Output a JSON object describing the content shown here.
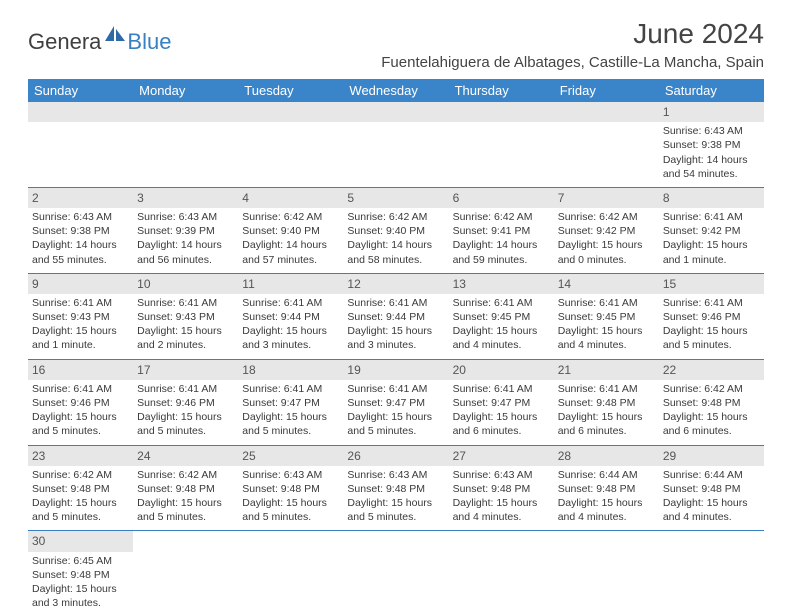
{
  "brand": {
    "word1": "Genera",
    "word2": "Blue"
  },
  "title": "June 2024",
  "location": "Fuentelahiguera de Albatages, Castille-La Mancha, Spain",
  "colors": {
    "header_bg": "#3a85c9",
    "header_text": "#ffffff",
    "row_divider": "#3a7fc2",
    "daynum_bg": "#e7e7e7",
    "body_text": "#3a3a3a",
    "logo_dark": "#3f3f3f",
    "logo_blue": "#3a7fc2",
    "page_bg": "#ffffff"
  },
  "weekdays": [
    "Sunday",
    "Monday",
    "Tuesday",
    "Wednesday",
    "Thursday",
    "Friday",
    "Saturday"
  ],
  "weeks": [
    [
      null,
      null,
      null,
      null,
      null,
      null,
      {
        "n": "1",
        "sunrise": "Sunrise: 6:43 AM",
        "sunset": "Sunset: 9:38 PM",
        "day1": "Daylight: 14 hours",
        "day2": "and 54 minutes."
      }
    ],
    [
      {
        "n": "2",
        "sunrise": "Sunrise: 6:43 AM",
        "sunset": "Sunset: 9:38 PM",
        "day1": "Daylight: 14 hours",
        "day2": "and 55 minutes."
      },
      {
        "n": "3",
        "sunrise": "Sunrise: 6:43 AM",
        "sunset": "Sunset: 9:39 PM",
        "day1": "Daylight: 14 hours",
        "day2": "and 56 minutes."
      },
      {
        "n": "4",
        "sunrise": "Sunrise: 6:42 AM",
        "sunset": "Sunset: 9:40 PM",
        "day1": "Daylight: 14 hours",
        "day2": "and 57 minutes."
      },
      {
        "n": "5",
        "sunrise": "Sunrise: 6:42 AM",
        "sunset": "Sunset: 9:40 PM",
        "day1": "Daylight: 14 hours",
        "day2": "and 58 minutes."
      },
      {
        "n": "6",
        "sunrise": "Sunrise: 6:42 AM",
        "sunset": "Sunset: 9:41 PM",
        "day1": "Daylight: 14 hours",
        "day2": "and 59 minutes."
      },
      {
        "n": "7",
        "sunrise": "Sunrise: 6:42 AM",
        "sunset": "Sunset: 9:42 PM",
        "day1": "Daylight: 15 hours",
        "day2": "and 0 minutes."
      },
      {
        "n": "8",
        "sunrise": "Sunrise: 6:41 AM",
        "sunset": "Sunset: 9:42 PM",
        "day1": "Daylight: 15 hours",
        "day2": "and 1 minute."
      }
    ],
    [
      {
        "n": "9",
        "sunrise": "Sunrise: 6:41 AM",
        "sunset": "Sunset: 9:43 PM",
        "day1": "Daylight: 15 hours",
        "day2": "and 1 minute."
      },
      {
        "n": "10",
        "sunrise": "Sunrise: 6:41 AM",
        "sunset": "Sunset: 9:43 PM",
        "day1": "Daylight: 15 hours",
        "day2": "and 2 minutes."
      },
      {
        "n": "11",
        "sunrise": "Sunrise: 6:41 AM",
        "sunset": "Sunset: 9:44 PM",
        "day1": "Daylight: 15 hours",
        "day2": "and 3 minutes."
      },
      {
        "n": "12",
        "sunrise": "Sunrise: 6:41 AM",
        "sunset": "Sunset: 9:44 PM",
        "day1": "Daylight: 15 hours",
        "day2": "and 3 minutes."
      },
      {
        "n": "13",
        "sunrise": "Sunrise: 6:41 AM",
        "sunset": "Sunset: 9:45 PM",
        "day1": "Daylight: 15 hours",
        "day2": "and 4 minutes."
      },
      {
        "n": "14",
        "sunrise": "Sunrise: 6:41 AM",
        "sunset": "Sunset: 9:45 PM",
        "day1": "Daylight: 15 hours",
        "day2": "and 4 minutes."
      },
      {
        "n": "15",
        "sunrise": "Sunrise: 6:41 AM",
        "sunset": "Sunset: 9:46 PM",
        "day1": "Daylight: 15 hours",
        "day2": "and 5 minutes."
      }
    ],
    [
      {
        "n": "16",
        "sunrise": "Sunrise: 6:41 AM",
        "sunset": "Sunset: 9:46 PM",
        "day1": "Daylight: 15 hours",
        "day2": "and 5 minutes."
      },
      {
        "n": "17",
        "sunrise": "Sunrise: 6:41 AM",
        "sunset": "Sunset: 9:46 PM",
        "day1": "Daylight: 15 hours",
        "day2": "and 5 minutes."
      },
      {
        "n": "18",
        "sunrise": "Sunrise: 6:41 AM",
        "sunset": "Sunset: 9:47 PM",
        "day1": "Daylight: 15 hours",
        "day2": "and 5 minutes."
      },
      {
        "n": "19",
        "sunrise": "Sunrise: 6:41 AM",
        "sunset": "Sunset: 9:47 PM",
        "day1": "Daylight: 15 hours",
        "day2": "and 5 minutes."
      },
      {
        "n": "20",
        "sunrise": "Sunrise: 6:41 AM",
        "sunset": "Sunset: 9:47 PM",
        "day1": "Daylight: 15 hours",
        "day2": "and 6 minutes."
      },
      {
        "n": "21",
        "sunrise": "Sunrise: 6:41 AM",
        "sunset": "Sunset: 9:48 PM",
        "day1": "Daylight: 15 hours",
        "day2": "and 6 minutes."
      },
      {
        "n": "22",
        "sunrise": "Sunrise: 6:42 AM",
        "sunset": "Sunset: 9:48 PM",
        "day1": "Daylight: 15 hours",
        "day2": "and 6 minutes."
      }
    ],
    [
      {
        "n": "23",
        "sunrise": "Sunrise: 6:42 AM",
        "sunset": "Sunset: 9:48 PM",
        "day1": "Daylight: 15 hours",
        "day2": "and 5 minutes."
      },
      {
        "n": "24",
        "sunrise": "Sunrise: 6:42 AM",
        "sunset": "Sunset: 9:48 PM",
        "day1": "Daylight: 15 hours",
        "day2": "and 5 minutes."
      },
      {
        "n": "25",
        "sunrise": "Sunrise: 6:43 AM",
        "sunset": "Sunset: 9:48 PM",
        "day1": "Daylight: 15 hours",
        "day2": "and 5 minutes."
      },
      {
        "n": "26",
        "sunrise": "Sunrise: 6:43 AM",
        "sunset": "Sunset: 9:48 PM",
        "day1": "Daylight: 15 hours",
        "day2": "and 5 minutes."
      },
      {
        "n": "27",
        "sunrise": "Sunrise: 6:43 AM",
        "sunset": "Sunset: 9:48 PM",
        "day1": "Daylight: 15 hours",
        "day2": "and 4 minutes."
      },
      {
        "n": "28",
        "sunrise": "Sunrise: 6:44 AM",
        "sunset": "Sunset: 9:48 PM",
        "day1": "Daylight: 15 hours",
        "day2": "and 4 minutes."
      },
      {
        "n": "29",
        "sunrise": "Sunrise: 6:44 AM",
        "sunset": "Sunset: 9:48 PM",
        "day1": "Daylight: 15 hours",
        "day2": "and 4 minutes."
      }
    ],
    [
      {
        "n": "30",
        "sunrise": "Sunrise: 6:45 AM",
        "sunset": "Sunset: 9:48 PM",
        "day1": "Daylight: 15 hours",
        "day2": "and 3 minutes."
      },
      null,
      null,
      null,
      null,
      null,
      null
    ]
  ]
}
